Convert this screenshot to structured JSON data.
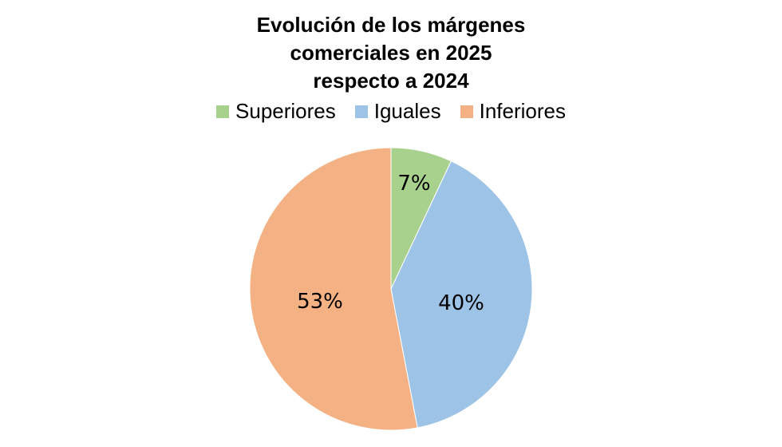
{
  "chart_data": {
    "type": "pie",
    "title": "Evolución de los márgenes comerciales en 2025 respecto a 2024",
    "title_lines": [
      "Evolución de los márgenes",
      "comerciales en 2025",
      "respecto a 2024"
    ],
    "categories": [
      "Superiores",
      "Iguales",
      "Inferiores"
    ],
    "values": [
      7,
      40,
      53
    ],
    "labels": [
      "7%",
      "40%",
      "53%"
    ],
    "colors": [
      "#a9d18e",
      "#9dc3e6",
      "#f4b183"
    ],
    "legend_position": "top"
  }
}
